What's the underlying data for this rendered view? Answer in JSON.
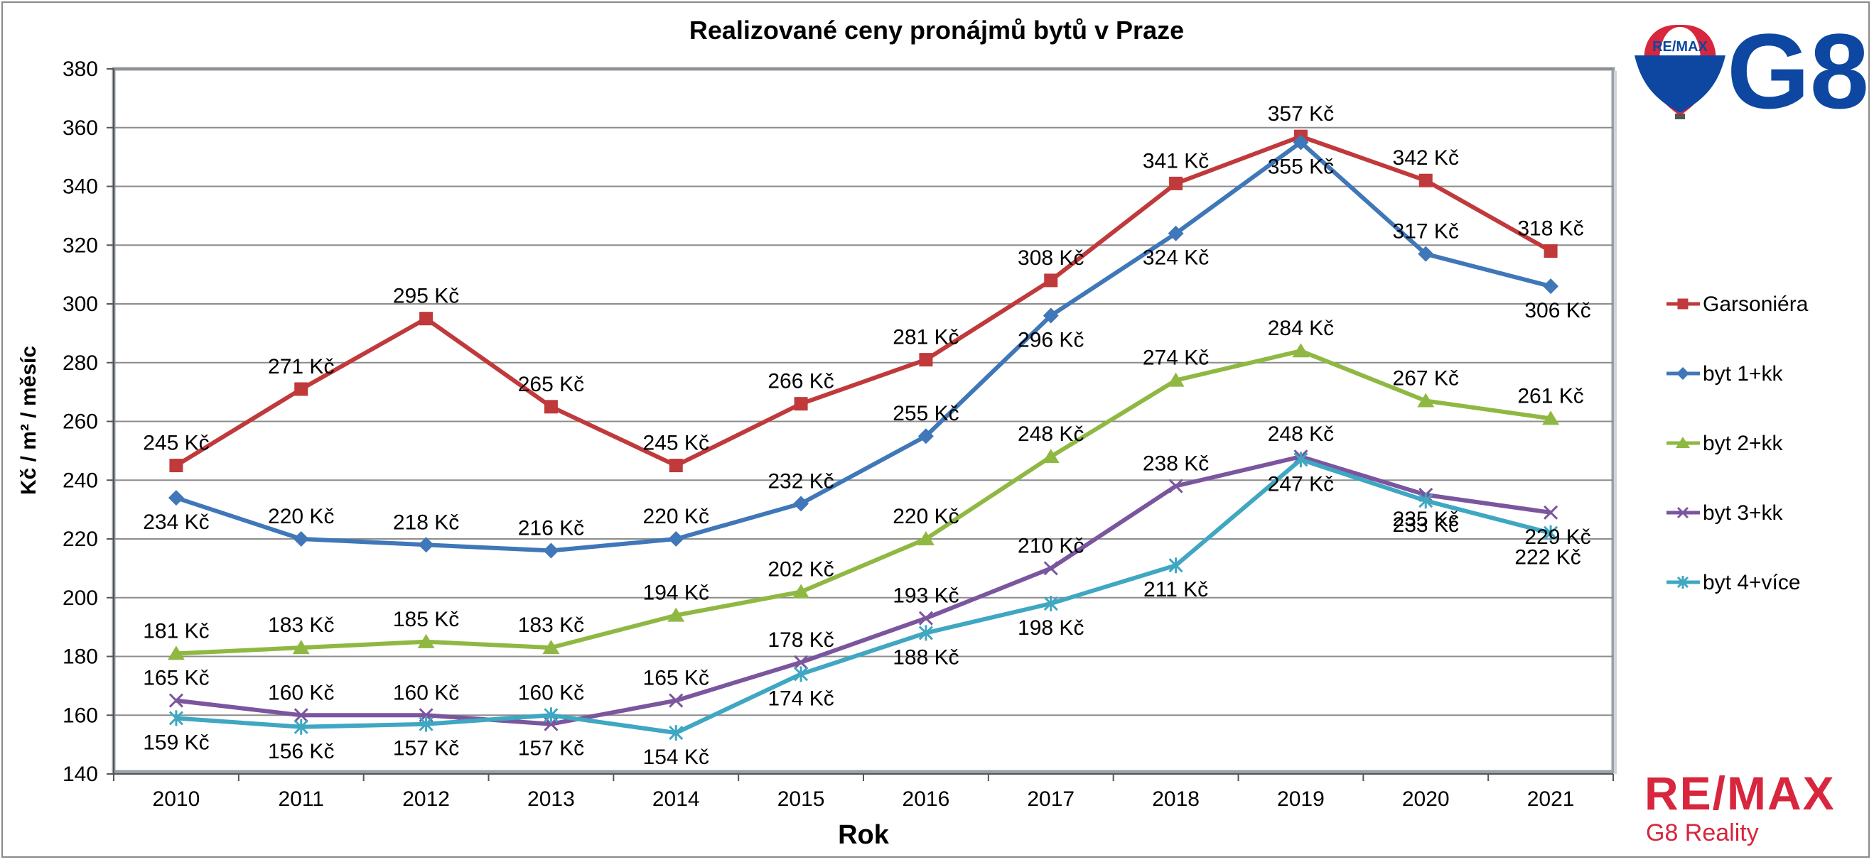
{
  "chart_data": {
    "type": "line",
    "title": "Realizované ceny pronájmů bytů v Praze",
    "xlabel": "Rok",
    "ylabel": "Kč / m² / měsíc",
    "ylim": [
      140,
      380
    ],
    "yticks": [
      140,
      160,
      180,
      200,
      220,
      240,
      260,
      280,
      300,
      320,
      340,
      360,
      380
    ],
    "categories": [
      "2010",
      "2011",
      "2012",
      "2013",
      "2014",
      "2015",
      "2016",
      "2017",
      "2018",
      "2019",
      "2020",
      "2021"
    ],
    "grid": true,
    "legend_position": "right",
    "value_suffix": " Kč",
    "series": [
      {
        "name": "Garsoniéra",
        "color": "#c0393b",
        "marker": "square",
        "values": [
          245,
          271,
          295,
          265,
          245,
          266,
          281,
          308,
          341,
          357,
          342,
          318
        ]
      },
      {
        "name": "byt 1+kk",
        "color": "#3f77b8",
        "marker": "diamond",
        "values": [
          234,
          220,
          218,
          216,
          220,
          232,
          255,
          296,
          324,
          355,
          317,
          306
        ]
      },
      {
        "name": "byt 2+kk",
        "color": "#8fb843",
        "marker": "triangle",
        "values": [
          181,
          183,
          185,
          183,
          194,
          202,
          220,
          248,
          274,
          284,
          267,
          261
        ]
      },
      {
        "name": "byt 3+kk",
        "color": "#7b559e",
        "marker": "x",
        "values": [
          165,
          160,
          160,
          157,
          165,
          178,
          193,
          210,
          238,
          248,
          235,
          229
        ]
      },
      {
        "name": "byt 4+více",
        "color": "#3fa7c2",
        "marker": "star",
        "values": [
          159,
          156,
          157,
          160,
          154,
          174,
          188,
          198,
          211,
          247,
          233,
          222
        ]
      }
    ]
  },
  "branding": {
    "remax": "RE/MAX",
    "subtitle": "G8 Reality",
    "balloon_text": "RE/MAX",
    "g8": "G8"
  }
}
